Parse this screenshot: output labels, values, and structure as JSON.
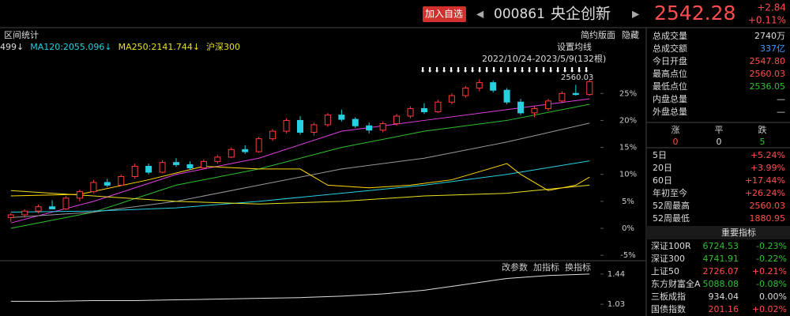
{
  "header": {
    "add_button": "加入自选",
    "code": "000861",
    "name": "央企创新",
    "price": "2542.28",
    "change": "+2.84",
    "change_pct": "+0.11%"
  },
  "toolbar": {
    "left": "区间统计",
    "layout": "简约版面",
    "hide": "隐藏"
  },
  "chart_data": [
    {
      "type": "candlestick",
      "up_color": "#ff3b3b",
      "down_color": "#26d0e0",
      "legend": [
        {
          "text": "499↓",
          "color": "#dddddd"
        },
        {
          "text": "MA120:2055.096↓",
          "color": "#26d0e0"
        },
        {
          "text": "MA250:2141.744↓",
          "color": "#e8e020"
        },
        {
          "text": "沪深300",
          "color": "#e8e020"
        }
      ],
      "settings_label": "设置均线",
      "range_label": "2022/10/24-2023/5/9(132根)",
      "high_label": "2560.03",
      "candles": [
        [
          2,
          2.8,
          1.2,
          2.5
        ],
        [
          2.5,
          3.5,
          2,
          3.2
        ],
        [
          3.2,
          4.4,
          2.8,
          4
        ],
        [
          4,
          5.2,
          3.6,
          3.6
        ],
        [
          3.6,
          6,
          3.4,
          5.6
        ],
        [
          5.6,
          7.2,
          5,
          6.8
        ],
        [
          6.8,
          9,
          6.5,
          8.5
        ],
        [
          8.5,
          9.2,
          7.6,
          8
        ],
        [
          8,
          10,
          7.8,
          9.6
        ],
        [
          9.6,
          12,
          9.2,
          11.5
        ],
        [
          11.5,
          12,
          10,
          10.4
        ],
        [
          10.4,
          12.6,
          10.2,
          12.2
        ],
        [
          12.2,
          13,
          11.4,
          11.8
        ],
        [
          11.8,
          12.4,
          10.8,
          11.2
        ],
        [
          11.2,
          12.8,
          11,
          12.4
        ],
        [
          12.4,
          13.6,
          12,
          13.2
        ],
        [
          13.2,
          15,
          13,
          14.6
        ],
        [
          14.6,
          15.4,
          13.8,
          14.2
        ],
        [
          14.2,
          17,
          14,
          16.6
        ],
        [
          16.6,
          18.4,
          16.2,
          18
        ],
        [
          18,
          20.4,
          17.6,
          20
        ],
        [
          20,
          20.8,
          17.4,
          17.8
        ],
        [
          17.8,
          19.6,
          17.2,
          19.2
        ],
        [
          19.2,
          21.4,
          18.8,
          21
        ],
        [
          21,
          22,
          19.8,
          20.2
        ],
        [
          20.2,
          20.6,
          18.6,
          19
        ],
        [
          19,
          19.6,
          17.6,
          18.2
        ],
        [
          18.2,
          19.8,
          17.8,
          19.4
        ],
        [
          19.4,
          21.2,
          19,
          20.8
        ],
        [
          20.8,
          22.6,
          20.4,
          22.2
        ],
        [
          22.2,
          23.2,
          21.2,
          21.6
        ],
        [
          21.6,
          23.8,
          21.4,
          23.4
        ],
        [
          23.4,
          25,
          23,
          24.6
        ],
        [
          24.6,
          26.4,
          24.2,
          26
        ],
        [
          26,
          27.6,
          25.4,
          27
        ],
        [
          27,
          27.4,
          25.2,
          25.6
        ],
        [
          25.6,
          26,
          23,
          23.4
        ],
        [
          23.4,
          24,
          21,
          21.4
        ],
        [
          21.4,
          22.6,
          20.6,
          22.2
        ],
        [
          22.2,
          24,
          21.8,
          23.6
        ],
        [
          23.6,
          25.4,
          23.2,
          25
        ],
        [
          25,
          26.6,
          24.6,
          24.8
        ],
        [
          24.8,
          27.5,
          24.6,
          27.2
        ]
      ],
      "lines": [
        {
          "color": "#e040e0",
          "x": [
            0,
            6,
            12,
            18,
            24,
            30,
            36,
            42
          ],
          "values": [
            1,
            5,
            10,
            13,
            18,
            20,
            22,
            24
          ]
        },
        {
          "color": "#30c030",
          "x": [
            0,
            6,
            12,
            18,
            24,
            30,
            36,
            42
          ],
          "values": [
            0,
            3,
            8,
            11,
            15,
            18,
            20,
            23
          ]
        },
        {
          "color": "#999999",
          "x": [
            0,
            6,
            12,
            18,
            24,
            30,
            36,
            42
          ],
          "values": [
            2,
            3,
            5,
            8,
            11,
            13,
            16,
            19.5
          ]
        },
        {
          "color": "#26d0e0",
          "x": [
            0,
            6,
            12,
            18,
            24,
            30,
            36,
            42
          ],
          "values": [
            3,
            3.2,
            3.8,
            5,
            6.5,
            8,
            10,
            12.5
          ]
        },
        {
          "color": "#e8e020",
          "x": [
            0,
            6,
            12,
            18,
            24,
            30,
            36,
            42
          ],
          "values": [
            7,
            6,
            5,
            4.5,
            5,
            6,
            6.5,
            8
          ]
        },
        {
          "color": "#ffd800",
          "x": [
            0,
            5,
            10,
            14,
            18,
            21,
            23,
            26,
            29,
            32,
            34,
            36,
            37,
            39,
            41,
            42
          ],
          "values": [
            6,
            6.3,
            9,
            11.5,
            11,
            11,
            8,
            7.5,
            8,
            9,
            10.5,
            12,
            10,
            7,
            8,
            9.5
          ]
        }
      ],
      "ylim": [
        -6,
        35
      ],
      "yticks": [
        {
          "value": 25,
          "label": "25%"
        },
        {
          "value": 20,
          "label": "20%"
        },
        {
          "value": 15,
          "label": "15%"
        },
        {
          "value": 10,
          "label": "10%"
        },
        {
          "value": 5,
          "label": "5%"
        },
        {
          "value": 0,
          "label": "0%"
        },
        {
          "value": -5,
          "label": "-5%"
        }
      ]
    },
    {
      "type": "line",
      "buttons": [
        "改参数",
        "加指标",
        "换指标"
      ],
      "color": "#dddddd",
      "x": [
        0,
        3,
        6,
        9,
        12,
        15,
        18,
        21,
        24,
        27,
        30,
        33,
        36,
        39,
        42
      ],
      "values": [
        1.07,
        1.07,
        1.08,
        1.08,
        1.09,
        1.1,
        1.11,
        1.12,
        1.14,
        1.17,
        1.22,
        1.3,
        1.38,
        1.42,
        1.44
      ],
      "ylim": [
        0.87,
        1.6
      ],
      "yticks": [
        1.44,
        1.03
      ]
    }
  ],
  "stats": [
    [
      "总成交量",
      "2740万",
      "#dddddd"
    ],
    [
      "总成交额",
      "337亿",
      "#3aa0ff"
    ],
    [
      "今日开盘",
      "2547.80",
      "#ff4d4d"
    ],
    [
      "最高点位",
      "2560.03",
      "#ff4d4d"
    ],
    [
      "最低点位",
      "2536.05",
      "#30c030"
    ],
    [
      "内盘总量",
      "—",
      "#dddddd"
    ],
    [
      "外盘总量",
      "—",
      "#dddddd"
    ]
  ],
  "breadth": {
    "headers": [
      "涨",
      "平",
      "跌"
    ],
    "values": [
      0,
      0,
      5
    ],
    "colors": [
      "#ff4d4d",
      "#dddddd",
      "#30c030"
    ]
  },
  "periods": [
    [
      "5日",
      "+5.24%"
    ],
    [
      "20日",
      "+3.99%"
    ],
    [
      "60日",
      "+17.44%"
    ],
    [
      "年初至今",
      "+26.24%"
    ],
    [
      "52周最高",
      "2560.03"
    ],
    [
      "52周最低",
      "1880.95"
    ]
  ],
  "indices": {
    "title": "重要指标",
    "rows": [
      [
        "深证100R",
        "6724.53",
        "-0.23%",
        "#30c030"
      ],
      [
        "深证300",
        "4741.91",
        "-0.22%",
        "#30c030"
      ],
      [
        "上证50",
        "2726.07",
        "+0.21%",
        "#ff4d4d"
      ],
      [
        "东方财富全A",
        "5088.08",
        "-0.08%",
        "#30c030"
      ],
      [
        "三板成指",
        "934.04",
        "0.00%",
        "#dddddd"
      ],
      [
        "国债指数",
        "201.16",
        "+0.02%",
        "#ff4d4d"
      ]
    ]
  }
}
